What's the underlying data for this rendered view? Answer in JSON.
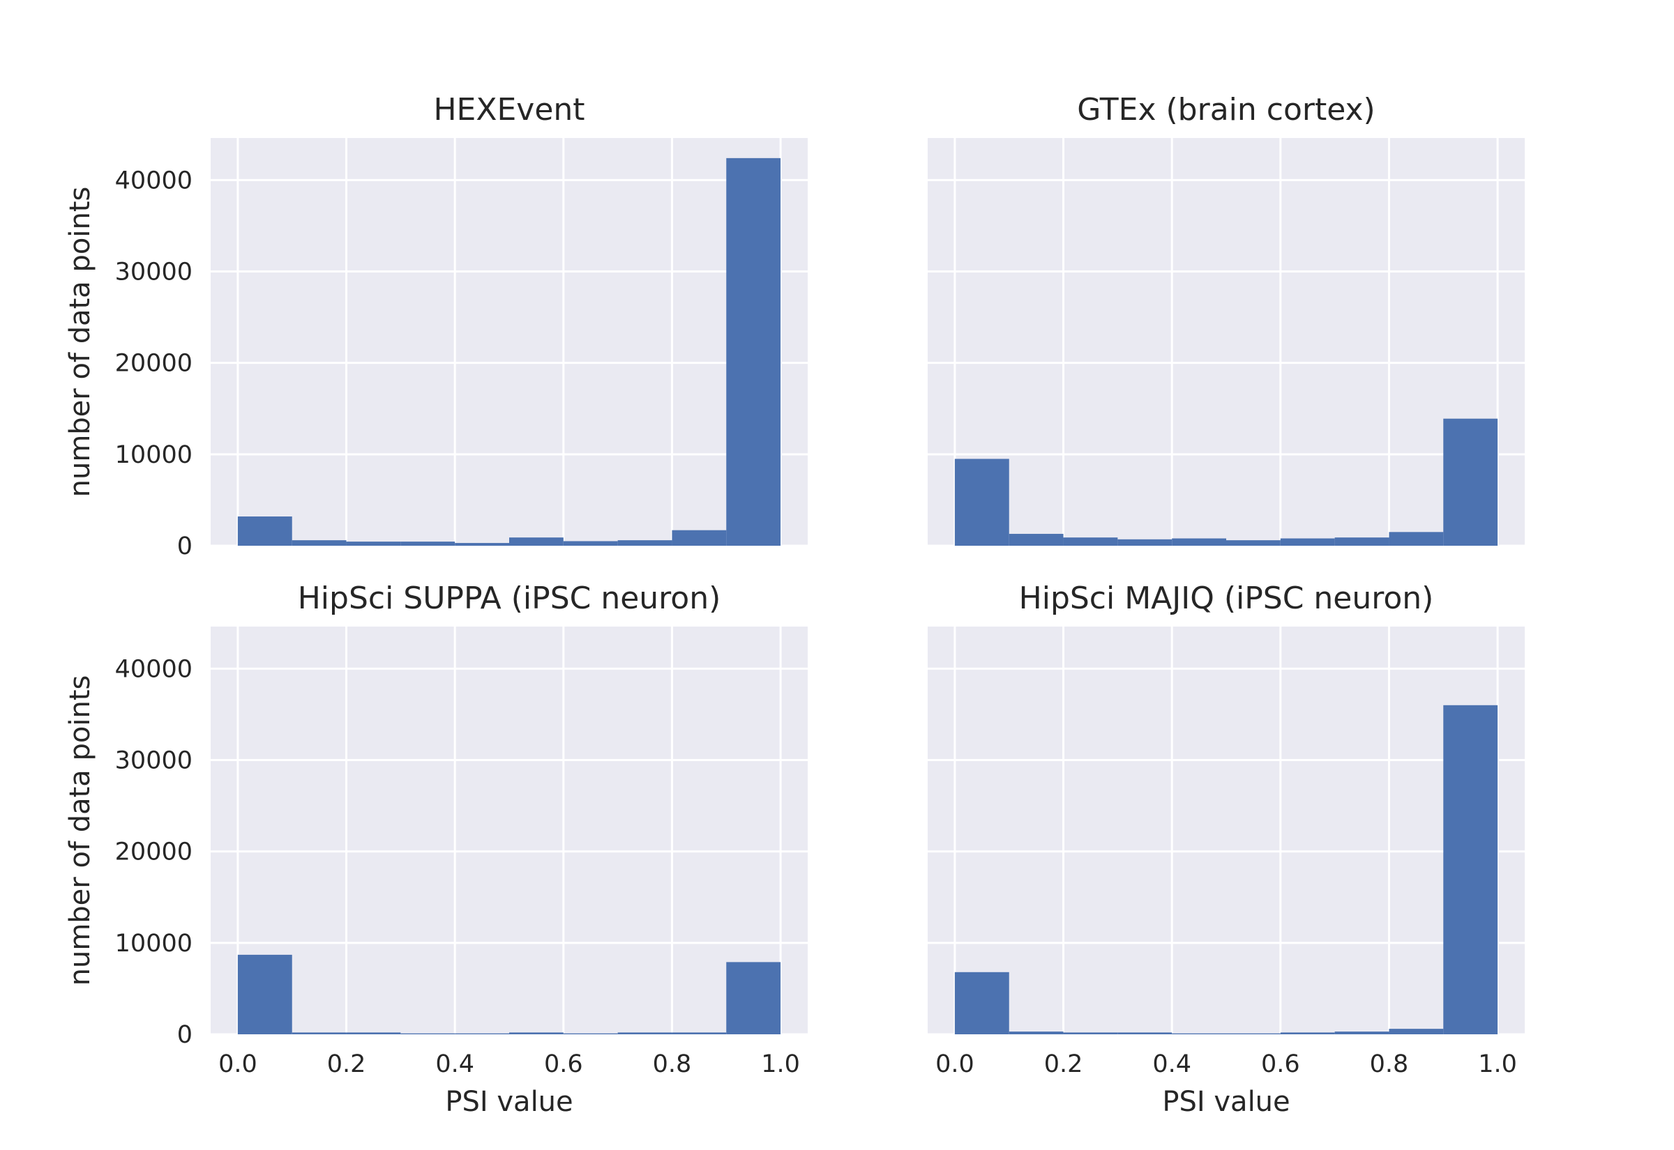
{
  "chart_data": [
    {
      "type": "bar",
      "title": "HEXEvent",
      "xlabel": "",
      "ylabel": "number of data points",
      "bin_edges": [
        0.0,
        0.1,
        0.2,
        0.3,
        0.4,
        0.5,
        0.6,
        0.7,
        0.8,
        0.9,
        1.0
      ],
      "values": [
        3200,
        600,
        450,
        450,
        300,
        900,
        500,
        600,
        1700,
        42400
      ],
      "xlim": [
        -0.05,
        1.05
      ],
      "ylim": [
        0,
        44600
      ],
      "xticks": [
        "0.0",
        "0.2",
        "0.4",
        "0.6",
        "0.8",
        "1.0"
      ],
      "yticks": [
        "0",
        "10000",
        "20000",
        "30000",
        "40000"
      ],
      "show_xticklabels": false,
      "show_yticklabels": true,
      "grid": true
    },
    {
      "type": "bar",
      "title": "GTEx (brain cortex)",
      "xlabel": "",
      "ylabel": "",
      "bin_edges": [
        0.0,
        0.1,
        0.2,
        0.3,
        0.4,
        0.5,
        0.6,
        0.7,
        0.8,
        0.9,
        1.0
      ],
      "values": [
        9500,
        1300,
        900,
        700,
        800,
        600,
        800,
        900,
        1500,
        13900
      ],
      "xlim": [
        -0.05,
        1.05
      ],
      "ylim": [
        0,
        44600
      ],
      "xticks": [
        "0.0",
        "0.2",
        "0.4",
        "0.6",
        "0.8",
        "1.0"
      ],
      "yticks": [
        "0",
        "10000",
        "20000",
        "30000",
        "40000"
      ],
      "show_xticklabels": false,
      "show_yticklabels": false,
      "grid": true
    },
    {
      "type": "bar",
      "title": "HipSci SUPPA (iPSC neuron)",
      "xlabel": "PSI value",
      "ylabel": "number of data points",
      "bin_edges": [
        0.0,
        0.1,
        0.2,
        0.3,
        0.4,
        0.5,
        0.6,
        0.7,
        0.8,
        0.9,
        1.0
      ],
      "values": [
        8700,
        200,
        200,
        100,
        100,
        200,
        100,
        200,
        200,
        7900
      ],
      "xlim": [
        -0.05,
        1.05
      ],
      "ylim": [
        0,
        44600
      ],
      "xticks": [
        "0.0",
        "0.2",
        "0.4",
        "0.6",
        "0.8",
        "1.0"
      ],
      "yticks": [
        "0",
        "10000",
        "20000",
        "30000",
        "40000"
      ],
      "show_xticklabels": true,
      "show_yticklabels": true,
      "grid": true
    },
    {
      "type": "bar",
      "title": "HipSci MAJIQ (iPSC neuron)",
      "xlabel": "PSI value",
      "ylabel": "",
      "bin_edges": [
        0.0,
        0.1,
        0.2,
        0.3,
        0.4,
        0.5,
        0.6,
        0.7,
        0.8,
        0.9,
        1.0
      ],
      "values": [
        6800,
        300,
        200,
        200,
        100,
        100,
        200,
        300,
        600,
        36000
      ],
      "xlim": [
        -0.05,
        1.05
      ],
      "ylim": [
        0,
        44600
      ],
      "xticks": [
        "0.0",
        "0.2",
        "0.4",
        "0.6",
        "0.8",
        "1.0"
      ],
      "yticks": [
        "0",
        "10000",
        "20000",
        "30000",
        "40000"
      ],
      "show_xticklabels": true,
      "show_yticklabels": false,
      "grid": true
    }
  ],
  "colors": {
    "bar": "#4c72b0",
    "background": "#eaeaf2",
    "grid": "#ffffff",
    "text": "#262626"
  }
}
